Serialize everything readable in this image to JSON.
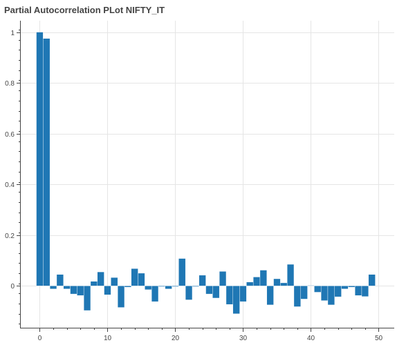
{
  "chart_data": {
    "type": "bar",
    "title": "Partial Autocorrelation PLot NIFTY_IT",
    "xlabel": "",
    "ylabel": "",
    "x": [
      0,
      1,
      2,
      3,
      4,
      5,
      6,
      7,
      8,
      9,
      10,
      11,
      12,
      13,
      14,
      15,
      16,
      17,
      18,
      19,
      20,
      21,
      22,
      23,
      24,
      25,
      26,
      27,
      28,
      29,
      30,
      31,
      32,
      33,
      34,
      35,
      36,
      37,
      38,
      39,
      40,
      41,
      42,
      43,
      44,
      45,
      46,
      47,
      48,
      49
    ],
    "values": [
      1.0,
      0.975,
      -0.012,
      0.045,
      -0.012,
      -0.032,
      -0.038,
      -0.097,
      0.018,
      0.055,
      -0.035,
      0.033,
      -0.085,
      -0.005,
      0.068,
      0.05,
      -0.015,
      -0.062,
      -0.003,
      -0.012,
      -0.003,
      0.108,
      -0.055,
      -0.003,
      0.042,
      -0.032,
      -0.048,
      0.057,
      -0.073,
      -0.11,
      -0.062,
      0.015,
      0.035,
      0.062,
      -0.075,
      0.028,
      0.012,
      0.085,
      -0.082,
      -0.052,
      0.002,
      -0.025,
      -0.058,
      -0.075,
      -0.043,
      -0.012,
      -0.005,
      -0.038,
      -0.042,
      0.045
    ],
    "bar_width": 1,
    "xlim": [
      -2.8,
      52.3
    ],
    "ylim": [
      -0.165,
      1.045
    ],
    "x_ticks": [
      0,
      10,
      20,
      30,
      40,
      50
    ],
    "y_ticks": [
      0,
      0.2,
      0.4,
      0.6,
      0.8,
      1
    ],
    "x_tick_labels": [
      "0",
      "10",
      "20",
      "30",
      "40",
      "50"
    ],
    "y_tick_labels": [
      "0",
      "0.2",
      "0.4",
      "0.6",
      "0.8",
      "1"
    ],
    "grid": true,
    "colors": {
      "bar": "#1f77b4",
      "grid": "#e5e5e5",
      "axis": "#444444"
    }
  }
}
